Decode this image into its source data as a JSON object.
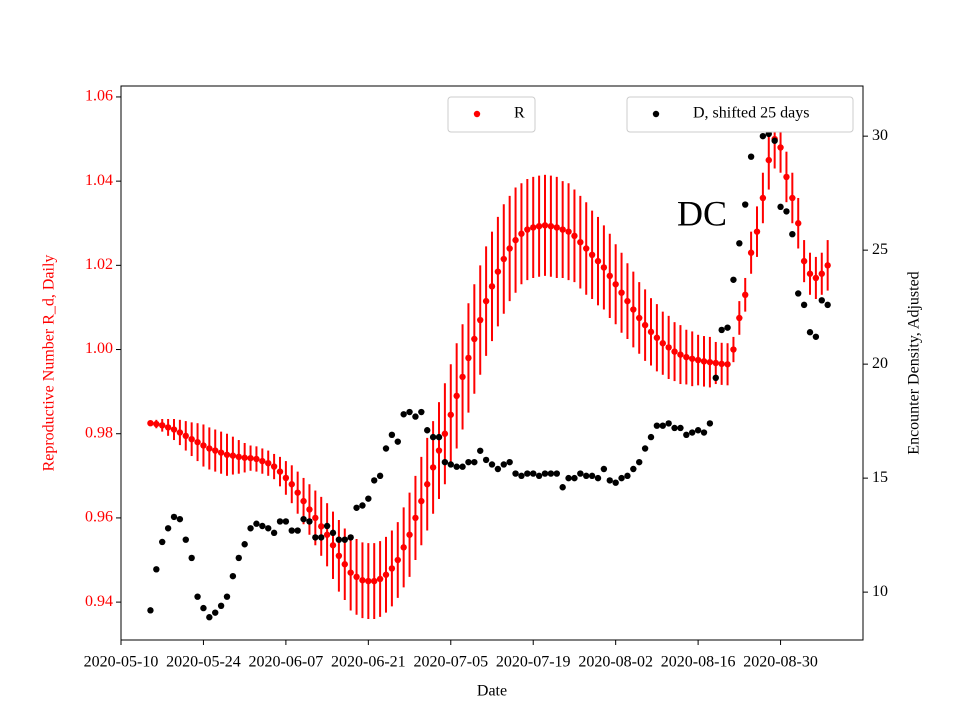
{
  "chart_data": {
    "type": "errorbar-scatter",
    "x_label": "Date",
    "y_label": "Reproductive Number R_d, Daily",
    "y2_label": "Encounter Density, Adjusted",
    "annotation": "DC",
    "xlim": [
      "2020-05-10",
      "2020-09-13"
    ],
    "xticks": [
      "2020-05-10",
      "2020-05-24",
      "2020-06-07",
      "2020-06-21",
      "2020-07-05",
      "2020-07-19",
      "2020-08-02",
      "2020-08-16",
      "2020-08-30"
    ],
    "ylim": [
      0.931,
      1.0626
    ],
    "yticks": [
      0.94,
      0.96,
      0.98,
      {
        "value": 1.0,
        "label": "1.00"
      },
      1.02,
      1.04,
      1.06
    ],
    "y2lim": [
      7.9,
      32.2
    ],
    "y2ticks": [
      10,
      15,
      20,
      25,
      30
    ],
    "x": [
      "2020-05-15",
      "2020-05-16",
      "2020-05-17",
      "2020-05-18",
      "2020-05-19",
      "2020-05-20",
      "2020-05-21",
      "2020-05-22",
      "2020-05-23",
      "2020-05-24",
      "2020-05-25",
      "2020-05-26",
      "2020-05-27",
      "2020-05-28",
      "2020-05-29",
      "2020-05-30",
      "2020-05-31",
      "2020-06-01",
      "2020-06-02",
      "2020-06-03",
      "2020-06-04",
      "2020-06-05",
      "2020-06-06",
      "2020-06-07",
      "2020-06-08",
      "2020-06-09",
      "2020-06-10",
      "2020-06-11",
      "2020-06-12",
      "2020-06-13",
      "2020-06-14",
      "2020-06-15",
      "2020-06-16",
      "2020-06-17",
      "2020-06-18",
      "2020-06-19",
      "2020-06-20",
      "2020-06-21",
      "2020-06-22",
      "2020-06-23",
      "2020-06-24",
      "2020-06-25",
      "2020-06-26",
      "2020-06-27",
      "2020-06-28",
      "2020-06-29",
      "2020-06-30",
      "2020-07-01",
      "2020-07-02",
      "2020-07-03",
      "2020-07-04",
      "2020-07-05",
      "2020-07-06",
      "2020-07-07",
      "2020-07-08",
      "2020-07-09",
      "2020-07-10",
      "2020-07-11",
      "2020-07-12",
      "2020-07-13",
      "2020-07-14",
      "2020-07-15",
      "2020-07-16",
      "2020-07-17",
      "2020-07-18",
      "2020-07-19",
      "2020-07-20",
      "2020-07-21",
      "2020-07-22",
      "2020-07-23",
      "2020-07-24",
      "2020-07-25",
      "2020-07-26",
      "2020-07-27",
      "2020-07-28",
      "2020-07-29",
      "2020-07-30",
      "2020-07-31",
      "2020-08-01",
      "2020-08-02",
      "2020-08-03",
      "2020-08-04",
      "2020-08-05",
      "2020-08-06",
      "2020-08-07",
      "2020-08-08",
      "2020-08-09",
      "2020-08-10",
      "2020-08-11",
      "2020-08-12",
      "2020-08-13",
      "2020-08-14",
      "2020-08-15",
      "2020-08-16",
      "2020-08-17",
      "2020-08-18",
      "2020-08-19",
      "2020-08-20",
      "2020-08-21",
      "2020-08-22",
      "2020-08-23",
      "2020-08-24",
      "2020-08-25",
      "2020-08-26",
      "2020-08-27",
      "2020-08-28",
      "2020-08-29",
      "2020-08-30",
      "2020-08-31",
      "2020-09-01",
      "2020-09-02",
      "2020-09-03",
      "2020-09-04",
      "2020-09-05",
      "2020-09-06",
      "2020-09-07"
    ],
    "series": [
      {
        "name": "R",
        "color": "#ff0000",
        "values": [
          0.9825,
          0.9823,
          0.982,
          0.9815,
          0.981,
          0.9803,
          0.9795,
          0.9787,
          0.978,
          0.9772,
          0.9765,
          0.976,
          0.9755,
          0.975,
          0.9748,
          0.9745,
          0.9743,
          0.9742,
          0.974,
          0.9735,
          0.973,
          0.9722,
          0.971,
          0.9695,
          0.968,
          0.966,
          0.964,
          0.962,
          0.96,
          0.958,
          0.956,
          0.9535,
          0.951,
          0.949,
          0.947,
          0.946,
          0.9452,
          0.945,
          0.945,
          0.9455,
          0.9465,
          0.948,
          0.95,
          0.953,
          0.956,
          0.96,
          0.964,
          0.968,
          0.972,
          0.976,
          0.98,
          0.9845,
          0.989,
          0.9935,
          0.998,
          1.0025,
          1.007,
          1.0115,
          1.015,
          1.0185,
          1.0215,
          1.024,
          1.026,
          1.0275,
          1.0285,
          1.029,
          1.0293,
          1.0295,
          1.0293,
          1.029,
          1.0285,
          1.028,
          1.027,
          1.0255,
          1.024,
          1.0225,
          1.021,
          1.0195,
          1.0175,
          1.0155,
          1.0135,
          1.0115,
          1.0095,
          1.0075,
          1.0058,
          1.0042,
          1.0028,
          1.0015,
          1.0005,
          0.9995,
          0.9988,
          0.9982,
          0.9978,
          0.9975,
          0.9972,
          0.997,
          0.9968,
          0.9966,
          0.9965,
          1.0,
          1.0075,
          1.013,
          1.023,
          1.028,
          1.036,
          1.045,
          1.05,
          1.048,
          1.041,
          1.036,
          1.03,
          1.021,
          1.018,
          1.017,
          1.018,
          1.02
        ],
        "errors": [
          0.0005,
          0.001,
          0.0015,
          0.002,
          0.0025,
          0.003,
          0.0035,
          0.004,
          0.0045,
          0.005,
          0.005,
          0.005,
          0.005,
          0.005,
          0.0045,
          0.004,
          0.0035,
          0.003,
          0.003,
          0.003,
          0.003,
          0.003,
          0.0035,
          0.004,
          0.0045,
          0.005,
          0.0055,
          0.006,
          0.0065,
          0.007,
          0.0075,
          0.008,
          0.0085,
          0.0085,
          0.009,
          0.009,
          0.009,
          0.009,
          0.009,
          0.009,
          0.009,
          0.009,
          0.009,
          0.0095,
          0.01,
          0.01,
          0.0105,
          0.011,
          0.011,
          0.0115,
          0.012,
          0.012,
          0.0125,
          0.0125,
          0.013,
          0.013,
          0.013,
          0.013,
          0.013,
          0.013,
          0.013,
          0.0125,
          0.0125,
          0.012,
          0.012,
          0.012,
          0.012,
          0.012,
          0.012,
          0.012,
          0.0115,
          0.0115,
          0.011,
          0.011,
          0.011,
          0.0105,
          0.0105,
          0.01,
          0.01,
          0.0095,
          0.0095,
          0.009,
          0.009,
          0.0085,
          0.0085,
          0.008,
          0.008,
          0.0075,
          0.0075,
          0.007,
          0.007,
          0.0065,
          0.0065,
          0.006,
          0.006,
          0.006,
          0.005,
          0.005,
          0.005,
          0.003,
          0.004,
          0.004,
          0.005,
          0.006,
          0.006,
          0.007,
          0.007,
          0.006,
          0.006,
          0.006,
          0.006,
          0.005,
          0.005,
          0.005,
          0.005,
          0.006
        ]
      },
      {
        "name": "D, shifted 25 days",
        "color": "#000000",
        "axis": "y2",
        "values": [
          9.2,
          11,
          12.2,
          12.8,
          13.3,
          13.2,
          12.3,
          11.5,
          9.8,
          9.3,
          8.9,
          9.1,
          9.4,
          9.8,
          10.7,
          11.5,
          12.1,
          12.8,
          13,
          12.9,
          12.8,
          12.6,
          13.1,
          13.1,
          12.7,
          12.7,
          13.2,
          13.1,
          12.4,
          12.4,
          12.9,
          12.6,
          12.3,
          12.3,
          12.4,
          13.7,
          13.8,
          14.1,
          14.9,
          15.1,
          16.3,
          16.9,
          16.6,
          17.8,
          17.9,
          17.7,
          17.9,
          17.1,
          16.8,
          16.8,
          15.7,
          15.6,
          15.5,
          15.5,
          15.7,
          15.7,
          16.2,
          15.8,
          15.6,
          15.4,
          15.6,
          15.7,
          15.2,
          15.1,
          15.2,
          15.2,
          15.1,
          15.2,
          15.2,
          15.2,
          14.6,
          15,
          15,
          15.2,
          15.1,
          15.1,
          15,
          15.4,
          14.9,
          14.8,
          15,
          15.1,
          15.4,
          15.7,
          16.3,
          16.8,
          17.3,
          17.3,
          17.4,
          17.2,
          17.2,
          16.9,
          17,
          17.1,
          17,
          17.4,
          19.4,
          21.5,
          21.6,
          23.7,
          25.3,
          27,
          29.1,
          30.5,
          30,
          30.1,
          29.8,
          26.9,
          26.7,
          25.7,
          23.1,
          22.6,
          21.4,
          21.2,
          22.8,
          22.6
        ]
      }
    ]
  }
}
